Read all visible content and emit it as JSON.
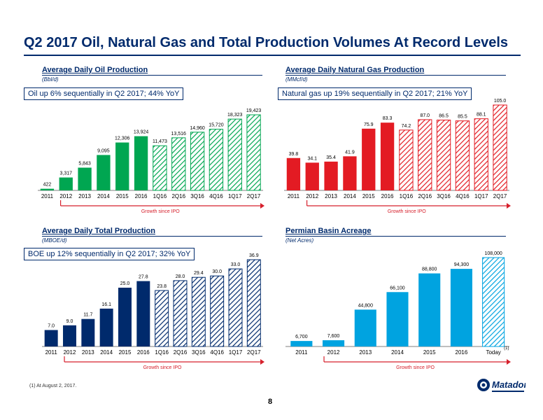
{
  "title": "Q2 2017 Oil, Natural Gas and Total Production Volumes At Record Levels",
  "footnote": "(1)   At August 2, 2017.",
  "page_number": "8",
  "logo_text": "Matador",
  "colors": {
    "navy": "#002a6c",
    "green": "#00a651",
    "red": "#e31b23",
    "blue": "#00a3e0",
    "growth_arrow": "#d6202c"
  },
  "panels": [
    {
      "id": "oil",
      "heading": "Average Daily Oil Production",
      "unit": "(Bbl/d)",
      "callout": "Oil up 6% sequentially in Q2 2017; 44% YoY",
      "growth_label": "Growth since IPO",
      "chart_data": {
        "type": "bar",
        "categories": [
          "2011",
          "2012",
          "2013",
          "2014",
          "2015",
          "2016",
          "1Q16",
          "2Q16",
          "3Q16",
          "4Q16",
          "1Q17",
          "2Q17"
        ],
        "values": [
          422,
          3317,
          5843,
          9095,
          12306,
          13924,
          11473,
          13516,
          14960,
          15720,
          18323,
          19423
        ],
        "labels": [
          "422",
          "3,317",
          "5,843",
          "9,095",
          "12,306",
          "13,924",
          "11,473",
          "13,516",
          "14,960",
          "15,720",
          "18,323",
          "19,423"
        ],
        "hatched_from_index": 6,
        "max": 19423,
        "color": "#00a651"
      }
    },
    {
      "id": "gas",
      "heading": "Average Daily Natural Gas Production",
      "unit": "(MMcf/d)",
      "callout": "Natural gas up 19% sequentially in Q2 2017; 21% YoY",
      "growth_label": "Growth since IPO",
      "chart_data": {
        "type": "bar",
        "categories": [
          "2011",
          "2012",
          "2013",
          "2014",
          "2015",
          "2016",
          "1Q16",
          "2Q16",
          "3Q16",
          "4Q16",
          "1Q17",
          "2Q17"
        ],
        "values": [
          39.8,
          34.1,
          35.4,
          41.9,
          75.9,
          83.3,
          74.2,
          87.0,
          86.5,
          85.5,
          88.1,
          105.0
        ],
        "labels": [
          "39.8",
          "34.1",
          "35.4",
          "41.9",
          "75.9",
          "83.3",
          "74.2",
          "87.0",
          "86.5",
          "85.5",
          "88.1",
          "105.0"
        ],
        "hatched_from_index": 6,
        "max": 105,
        "color": "#e31b23"
      }
    },
    {
      "id": "total",
      "heading": "Average Daily Total Production",
      "unit": "(MBOE/d)",
      "callout": "BOE up 12% sequentially in Q2 2017; 32% YoY",
      "growth_label": "Growth since IPO",
      "chart_data": {
        "type": "bar",
        "categories": [
          "2011",
          "2012",
          "2013",
          "2014",
          "2015",
          "2016",
          "1Q16",
          "2Q16",
          "3Q16",
          "4Q16",
          "1Q17",
          "2Q17"
        ],
        "values": [
          7.0,
          9.0,
          11.7,
          16.1,
          25.0,
          27.8,
          23.8,
          28.0,
          29.4,
          30.0,
          33.0,
          36.9
        ],
        "labels": [
          "7.0",
          "9.0",
          "11.7",
          "16.1",
          "25.0",
          "27.8",
          "23.8",
          "28.0",
          "29.4",
          "30.0",
          "33.0",
          "36.9"
        ],
        "hatched_from_index": 6,
        "max": 36.9,
        "color": "#002a6c"
      }
    },
    {
      "id": "acreage",
      "heading": "Permian Basin Acreage",
      "unit": "(Net Acres)",
      "callout": "",
      "growth_label": "Growth since IPO",
      "chart_data": {
        "type": "bar",
        "categories": [
          "2011",
          "2012",
          "2013",
          "2014",
          "2015",
          "2016",
          "Today"
        ],
        "category_note": "(1)",
        "values": [
          6700,
          7600,
          44800,
          66100,
          88800,
          94300,
          108000
        ],
        "labels": [
          "6,700",
          "7,600",
          "44,800",
          "66,100",
          "88,800",
          "94,300",
          "108,000"
        ],
        "hatched_from_index": 6,
        "max": 108000,
        "color": "#00a3e0"
      }
    }
  ]
}
